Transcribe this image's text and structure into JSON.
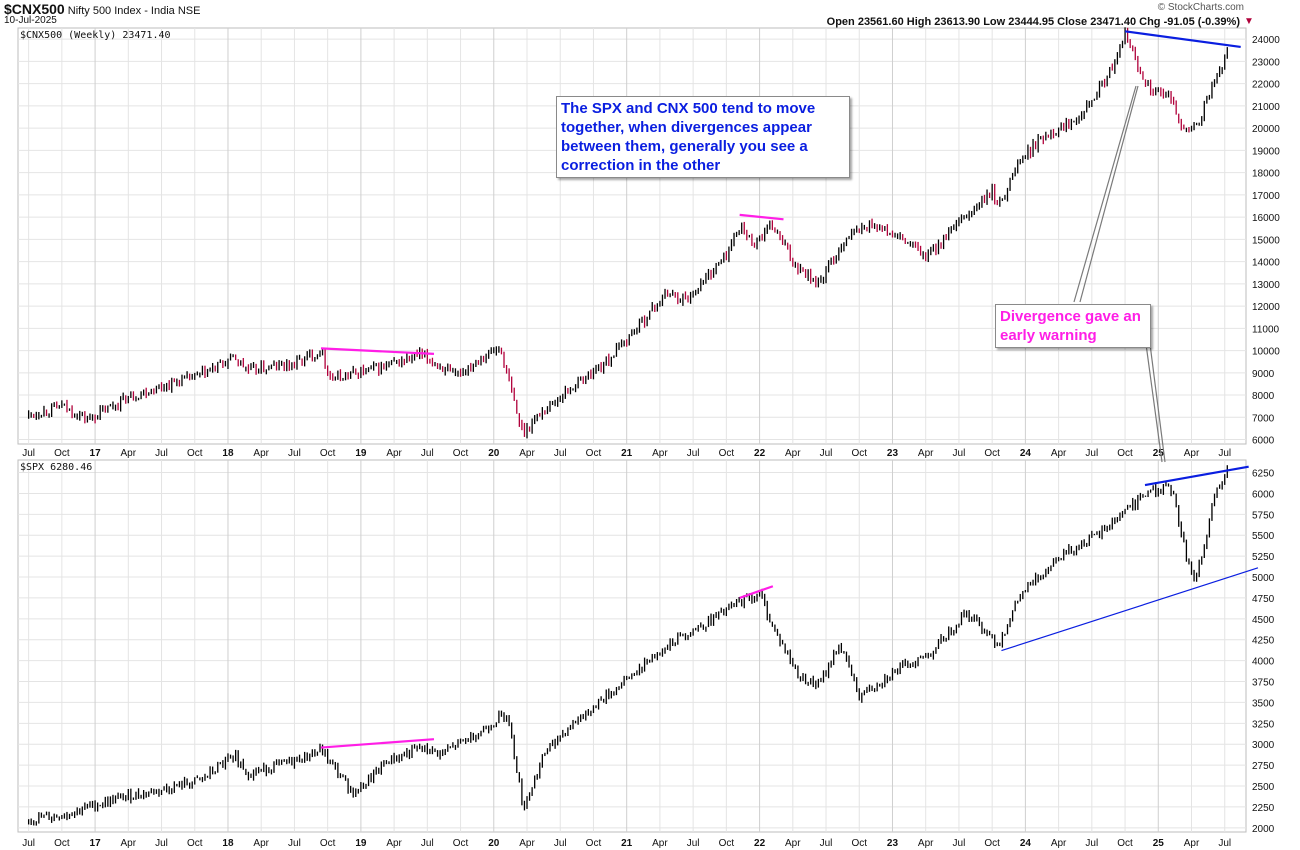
{
  "header": {
    "symbol": "$CNX500",
    "name": "Nifty 500 Index - India",
    "exchange": "NSE",
    "date": "10-Jul-2025",
    "source": "© StockCharts.com",
    "ohlc": "Open 23561.60  High 23613.90  Low 23444.95  Close 23471.40  Chg -91.05 (-0.39%)"
  },
  "colors": {
    "up": "#000000",
    "down": "#b0003a",
    "blue": "#0a1ee0",
    "magenta": "#ff1ee6",
    "grid": "#e4e4e4"
  },
  "annotations": {
    "box1": "The SPX and CNX 500 tend to move together, when divergences appear between them, generally you see a correction in the other",
    "box2": "Divergence gave an early warning"
  },
  "chart_data": [
    {
      "type": "line",
      "panel_label": "$CNX500 (Weekly) 23471.40",
      "ylim": [
        5800,
        24500
      ],
      "ticks": [
        6000,
        7000,
        8000,
        9000,
        10000,
        11000,
        12000,
        13000,
        14000,
        15000,
        16000,
        17000,
        18000,
        19000,
        20000,
        21000,
        22000,
        23000,
        24000
      ],
      "series": [
        {
          "values": [
            [
              2016.5,
              7100
            ],
            [
              2016.75,
              7500
            ],
            [
              2016.95,
              6900
            ],
            [
              2017.25,
              7900
            ],
            [
              2017.5,
              8400
            ],
            [
              2017.8,
              8900
            ],
            [
              2018.05,
              9700
            ],
            [
              2018.15,
              9100
            ],
            [
              2018.5,
              9400
            ],
            [
              2018.7,
              10000
            ],
            [
              2018.78,
              8700
            ],
            [
              2018.9,
              8900
            ],
            [
              2019.2,
              9300
            ],
            [
              2019.45,
              9800
            ],
            [
              2019.6,
              9300
            ],
            [
              2019.7,
              8800
            ],
            [
              2019.9,
              9700
            ],
            [
              2020.05,
              10100
            ],
            [
              2020.18,
              7000
            ],
            [
              2020.22,
              6300
            ],
            [
              2020.35,
              7200
            ],
            [
              2020.6,
              8400
            ],
            [
              2020.85,
              9500
            ],
            [
              2021.1,
              11200
            ],
            [
              2021.3,
              12600
            ],
            [
              2021.45,
              12300
            ],
            [
              2021.75,
              14300
            ],
            [
              2021.85,
              15600
            ],
            [
              2021.95,
              14800
            ],
            [
              2022.1,
              15600
            ],
            [
              2022.25,
              14000
            ],
            [
              2022.45,
              13000
            ],
            [
              2022.65,
              15100
            ],
            [
              2022.85,
              15700
            ],
            [
              2023.15,
              14700
            ],
            [
              2023.25,
              14200
            ],
            [
              2023.55,
              16000
            ],
            [
              2023.75,
              17100
            ],
            [
              2023.8,
              16500
            ],
            [
              2023.95,
              18500
            ],
            [
              2024.15,
              19700
            ],
            [
              2024.35,
              20300
            ],
            [
              2024.55,
              21700
            ],
            [
              2024.7,
              23200
            ],
            [
              2024.75,
              24300
            ],
            [
              2024.85,
              22700
            ],
            [
              2024.95,
              21700
            ],
            [
              2025.1,
              21300
            ],
            [
              2025.2,
              19800
            ],
            [
              2025.3,
              20200
            ],
            [
              2025.45,
              22500
            ],
            [
              2025.53,
              23470
            ]
          ]
        }
      ],
      "trendlines": [
        {
          "color": "magenta",
          "points": [
            [
              2018.7,
              10100
            ],
            [
              2019.55,
              9850
            ]
          ]
        },
        {
          "color": "magenta",
          "points": [
            [
              2021.85,
              16100
            ],
            [
              2022.18,
              15900
            ]
          ]
        },
        {
          "color": "blue",
          "points": [
            [
              2024.75,
              24350
            ],
            [
              2025.62,
              23650
            ]
          ]
        }
      ]
    },
    {
      "type": "line",
      "panel_label": "$SPX 6280.46",
      "ylim": [
        1950,
        6400
      ],
      "ticks": [
        2000,
        2250,
        2500,
        2750,
        3000,
        3250,
        3500,
        3750,
        4000,
        4250,
        4500,
        4750,
        5000,
        5250,
        5500,
        5750,
        6000,
        6250
      ],
      "series": [
        {
          "values": [
            [
              2016.5,
              2100
            ],
            [
              2016.75,
              2150
            ],
            [
              2016.95,
              2250
            ],
            [
              2017.25,
              2380
            ],
            [
              2017.5,
              2450
            ],
            [
              2017.8,
              2570
            ],
            [
              2018.05,
              2870
            ],
            [
              2018.15,
              2650
            ],
            [
              2018.5,
              2800
            ],
            [
              2018.7,
              2930
            ],
            [
              2018.95,
              2400
            ],
            [
              2019.2,
              2800
            ],
            [
              2019.45,
              2950
            ],
            [
              2019.6,
              2880
            ],
            [
              2019.9,
              3150
            ],
            [
              2020.1,
              3380
            ],
            [
              2020.18,
              2650
            ],
            [
              2020.22,
              2230
            ],
            [
              2020.4,
              2950
            ],
            [
              2020.7,
              3400
            ],
            [
              2020.95,
              3700
            ],
            [
              2021.3,
              4200
            ],
            [
              2021.6,
              4450
            ],
            [
              2021.85,
              4700
            ],
            [
              2022.0,
              4800
            ],
            [
              2022.1,
              4400
            ],
            [
              2022.3,
              3800
            ],
            [
              2022.45,
              3700
            ],
            [
              2022.6,
              4200
            ],
            [
              2022.75,
              3580
            ],
            [
              2023.0,
              3850
            ],
            [
              2023.3,
              4100
            ],
            [
              2023.55,
              4580
            ],
            [
              2023.8,
              4200
            ],
            [
              2023.95,
              4750
            ],
            [
              2024.25,
              5250
            ],
            [
              2024.55,
              5500
            ],
            [
              2024.75,
              5800
            ],
            [
              2024.95,
              6050
            ],
            [
              2025.1,
              6050
            ],
            [
              2025.22,
              5200
            ],
            [
              2025.28,
              4950
            ],
            [
              2025.42,
              5950
            ],
            [
              2025.53,
              6280
            ]
          ]
        }
      ],
      "trendlines": [
        {
          "color": "magenta",
          "points": [
            [
              2018.7,
              2960
            ],
            [
              2019.55,
              3060
            ]
          ]
        },
        {
          "color": "magenta",
          "points": [
            [
              2021.85,
              4750
            ],
            [
              2022.1,
              4890
            ]
          ]
        },
        {
          "color": "blue",
          "points": [
            [
              2024.9,
              6100
            ],
            [
              2025.68,
              6320
            ]
          ]
        },
        {
          "color": "blue",
          "points": [
            [
              2023.82,
              4120
            ],
            [
              2025.75,
              5110
            ]
          ]
        }
      ]
    }
  ],
  "x_ticks": [
    "Jul",
    "Oct",
    "17",
    "Apr",
    "Jul",
    "Oct",
    "18",
    "Apr",
    "Jul",
    "Oct",
    "19",
    "Apr",
    "Jul",
    "Oct",
    "20",
    "Apr",
    "Jul",
    "Oct",
    "21",
    "Apr",
    "Jul",
    "Oct",
    "22",
    "Apr",
    "Jul",
    "Oct",
    "23",
    "Apr",
    "Jul",
    "Oct",
    "24",
    "Apr",
    "Jul",
    "Oct",
    "25",
    "Apr",
    "Jul"
  ]
}
